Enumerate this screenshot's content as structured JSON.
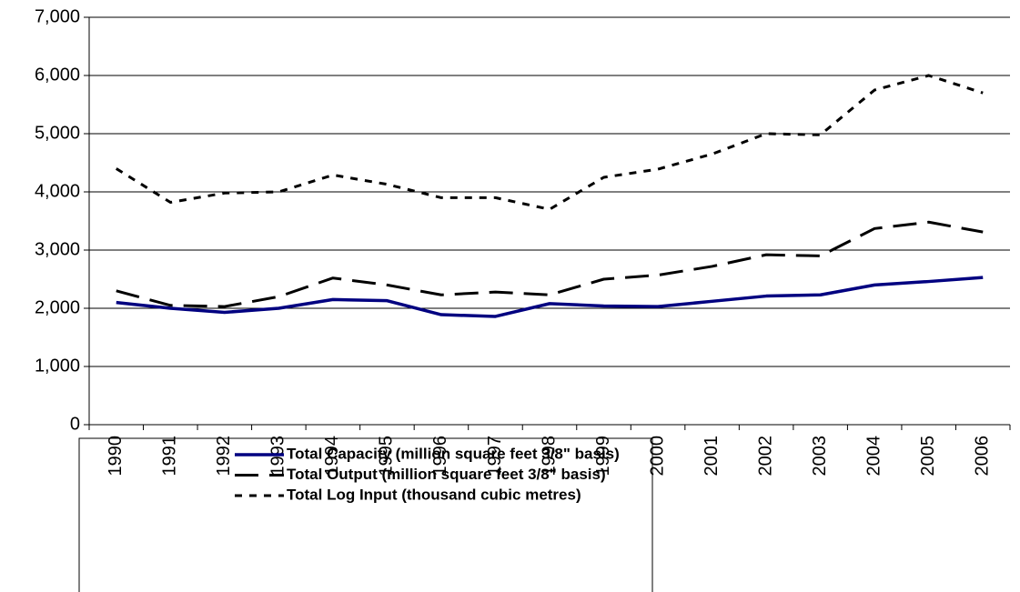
{
  "chart_data": {
    "type": "line",
    "categories": [
      "1990",
      "1991",
      "1992",
      "1993",
      "1994",
      "1995",
      "1996",
      "1997",
      "1998",
      "1999",
      "2000",
      "2001",
      "2002",
      "2003",
      "2004",
      "2005",
      "2006"
    ],
    "series": [
      {
        "name": "Total Capacity (million square feet 3/8\" basis)",
        "color": "#000080",
        "dash": "solid",
        "values": [
          2100,
          2000,
          1930,
          2000,
          2150,
          2130,
          1890,
          1860,
          2080,
          2040,
          2030,
          2120,
          2210,
          2230,
          2400,
          2460,
          2530
        ]
      },
      {
        "name": "Total Output (million square feet 3/8\" basis)",
        "color": "#000000",
        "dash": "long",
        "values": [
          2300,
          2050,
          2030,
          2200,
          2520,
          2400,
          2230,
          2280,
          2230,
          2500,
          2570,
          2720,
          2920,
          2900,
          3370,
          3480,
          3310
        ]
      },
      {
        "name": "Total Log Input (thousand cubic metres)",
        "color": "#000000",
        "dash": "short",
        "values": [
          4400,
          3820,
          3980,
          4000,
          4290,
          4130,
          3900,
          3900,
          3700,
          4250,
          4390,
          4650,
          5000,
          4980,
          5750,
          6000,
          5700
        ]
      }
    ],
    "ylim": [
      0,
      7000
    ],
    "yticks": [
      0,
      {
        "value": 1000,
        "label": "1,000"
      },
      {
        "value": 2000,
        "label": "2,000"
      },
      {
        "value": 3000,
        "label": "3,000"
      },
      {
        "value": 4000,
        "label": "4,000"
      },
      {
        "value": 5000,
        "label": "5,000"
      },
      {
        "value": 6000,
        "label": "6,000"
      },
      {
        "value": 7000,
        "label": "7,000"
      }
    ],
    "grid": true
  }
}
